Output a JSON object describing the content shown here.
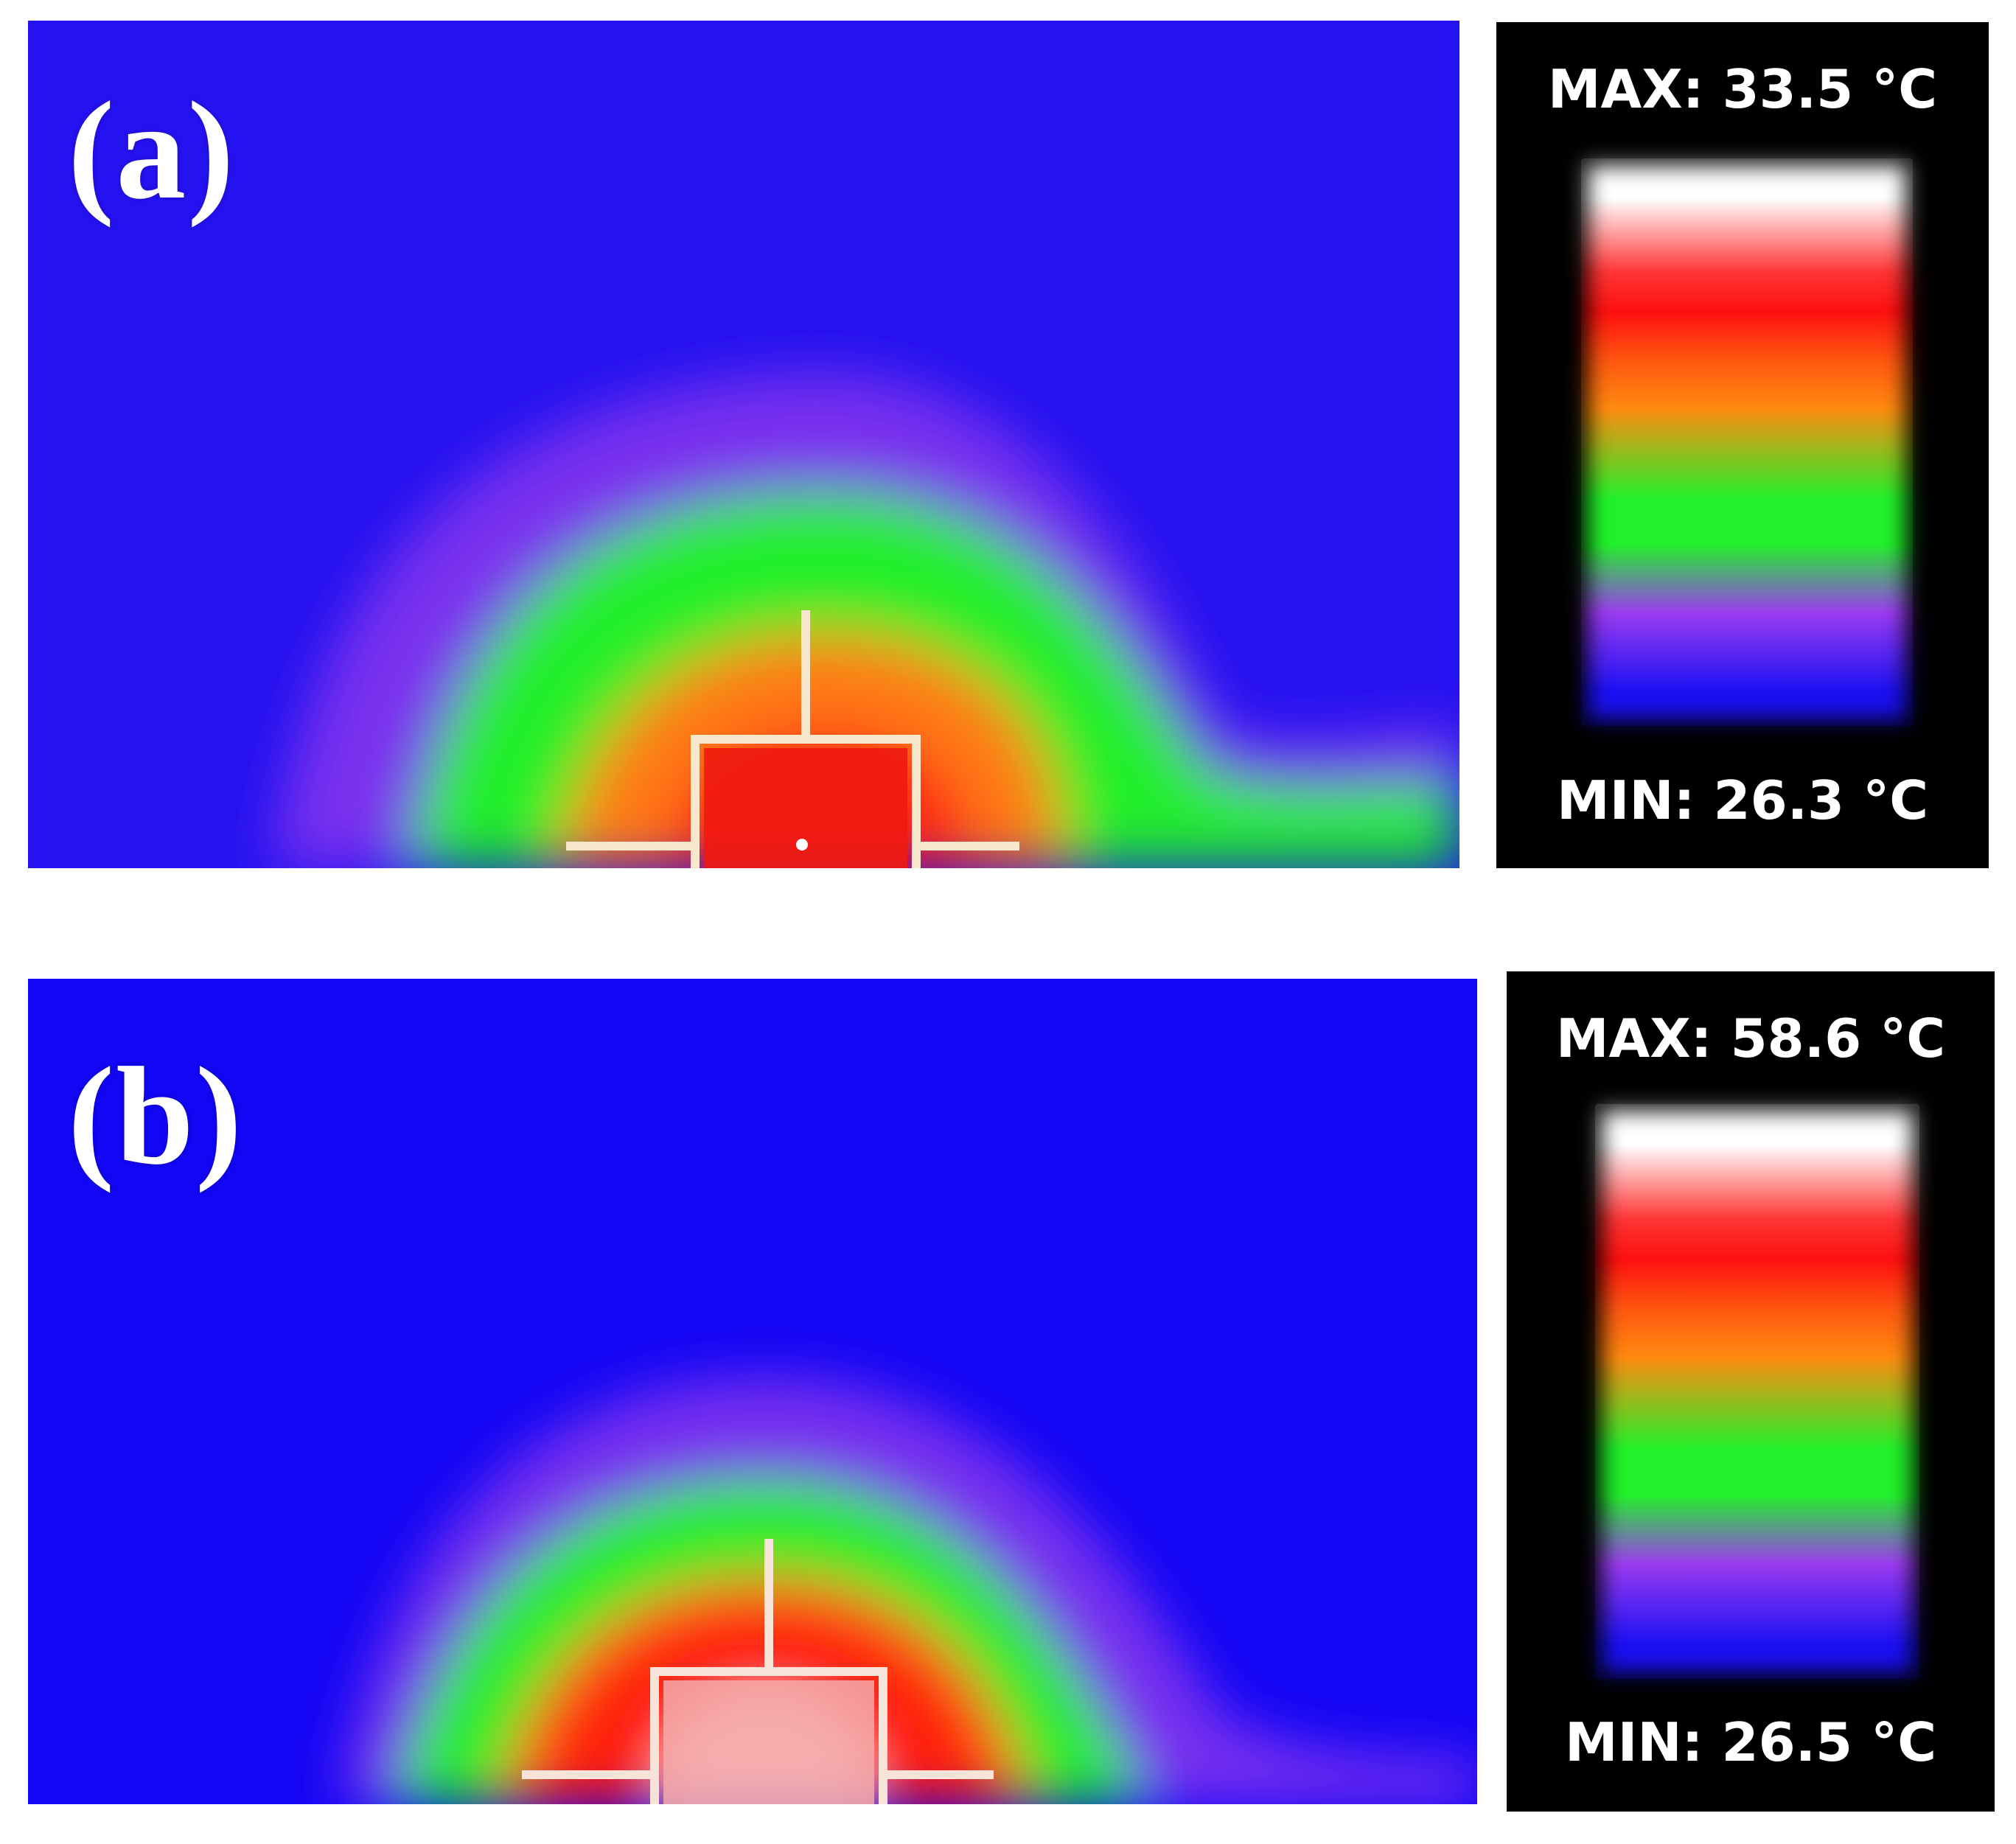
{
  "panels": [
    {
      "label": "(a)",
      "scale": {
        "max_label": "MAX: 33.5 °C",
        "min_label": "MIN: 26.3 °C"
      },
      "hotspot_level": "medium"
    },
    {
      "label": "(b)",
      "scale": {
        "max_label": "MAX: 58.6 °C",
        "min_label": "MIN: 26.5 °C"
      },
      "hotspot_level": "high"
    }
  ],
  "colors": {
    "background_cold": "#1a10f2",
    "violet": "#9b3cf0",
    "green": "#22f02a",
    "orange": "#ff7a1a",
    "red": "#ff1a10",
    "white": "#ffffff",
    "scale_background": "#000000"
  },
  "colorbar_stops": [
    "#ffffff",
    "#ff2a2a",
    "#ff1a10",
    "#ff7a10",
    "#22f02a",
    "#9b3cf0",
    "#1a10f2"
  ]
}
